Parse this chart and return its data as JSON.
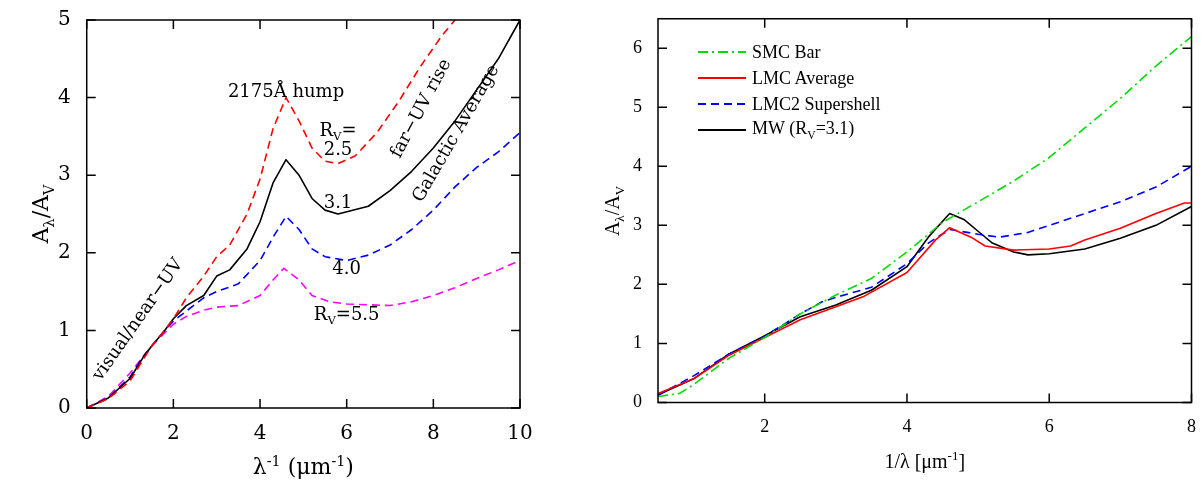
{
  "chart_data": [
    {
      "type": "line",
      "xlabel": "λ$^{-1}$   (μm$^{-1}$)",
      "ylabel": "A$_{λ}$/A$_{V}$",
      "xlim": [
        0,
        10
      ],
      "ylim": [
        0,
        5
      ],
      "xticks": [
        0,
        2,
        4,
        6,
        8,
        10
      ],
      "yticks": [
        0,
        1,
        2,
        3,
        4,
        5
      ],
      "series": [
        {
          "color": "#ff0000",
          "line_style": "dashed",
          "x": [
            0,
            0.5,
            1,
            1.3,
            1.5,
            1.8,
            2,
            2.3,
            2.7,
            3,
            3.3,
            3.7,
            4,
            4.3,
            4.6,
            4.9,
            5.2,
            5.5,
            5.8,
            6.2,
            6.7,
            7.2,
            7.7,
            8.2,
            8.5
          ],
          "values": [
            0,
            0.12,
            0.35,
            0.62,
            0.8,
            1.0,
            1.15,
            1.42,
            1.7,
            1.95,
            2.1,
            2.5,
            2.95,
            3.6,
            4.0,
            3.7,
            3.35,
            3.18,
            3.15,
            3.25,
            3.55,
            3.95,
            4.4,
            4.8,
            5.0
          ]
        },
        {
          "color": "#000000",
          "line_style": "solid",
          "x": [
            0,
            0.5,
            1,
            1.3,
            1.5,
            1.8,
            2,
            2.3,
            2.7,
            3,
            3.3,
            3.7,
            4,
            4.3,
            4.6,
            4.9,
            5.2,
            5.5,
            5.8,
            6.5,
            7,
            7.5,
            8,
            8.5,
            9,
            9.5,
            10
          ],
          "values": [
            0,
            0.13,
            0.38,
            0.65,
            0.8,
            1.0,
            1.15,
            1.32,
            1.45,
            1.7,
            1.78,
            2.05,
            2.4,
            2.9,
            3.2,
            3.0,
            2.7,
            2.55,
            2.5,
            2.6,
            2.8,
            3.05,
            3.35,
            3.7,
            4.1,
            4.5,
            5.0
          ]
        },
        {
          "color": "#0000ff",
          "line_style": "dashed",
          "x": [
            0,
            0.5,
            1,
            1.3,
            1.5,
            1.8,
            2,
            2.3,
            2.7,
            3,
            3.5,
            4,
            4.3,
            4.6,
            4.9,
            5.2,
            5.5,
            6,
            6.5,
            7,
            7.5,
            8,
            8.5,
            9,
            9.5,
            10
          ],
          "values": [
            0,
            0.13,
            0.4,
            0.66,
            0.8,
            1.0,
            1.12,
            1.25,
            1.42,
            1.5,
            1.6,
            1.9,
            2.2,
            2.47,
            2.3,
            2.05,
            1.95,
            1.9,
            1.97,
            2.1,
            2.3,
            2.55,
            2.85,
            3.1,
            3.3,
            3.55
          ]
        },
        {
          "color": "#ff00ff",
          "line_style": "dashed",
          "x": [
            0,
            0.5,
            1,
            1.5,
            2,
            2.3,
            2.7,
            3,
            3.5,
            4,
            4.3,
            4.55,
            4.9,
            5.2,
            5.6,
            6,
            7,
            7.5,
            8,
            8.5,
            9,
            9.5,
            10
          ],
          "values": [
            0,
            0.15,
            0.45,
            0.8,
            1.08,
            1.18,
            1.26,
            1.3,
            1.32,
            1.45,
            1.65,
            1.8,
            1.65,
            1.45,
            1.37,
            1.34,
            1.32,
            1.37,
            1.45,
            1.55,
            1.67,
            1.78,
            1.9
          ]
        }
      ],
      "annotations": [
        "2175Å hump",
        "R$_{V}$=",
        "2.5",
        "far−UV rise",
        "Galactic Average",
        "3.1",
        "4.0",
        "R$_{V}$=5.5",
        "visual/near−UV"
      ]
    },
    {
      "type": "line",
      "xlabel": "1/λ [μm$^{-1}$]",
      "ylabel": "A$_{λ}$/A$_{V}$",
      "xlim": [
        0.5,
        8
      ],
      "ylim": [
        0,
        6.5
      ],
      "xticks": [
        2,
        4,
        6,
        8
      ],
      "yticks": [
        0,
        1,
        2,
        3,
        4,
        5,
        6
      ],
      "legend": "top left",
      "series": [
        {
          "name": "SMC Bar",
          "color": "#00dd00",
          "line_style": "dashdot",
          "x": [
            0.5,
            0.8,
            1,
            1.5,
            2,
            2.5,
            3,
            3.5,
            4,
            4.5,
            5,
            5.5,
            6,
            6.5,
            7,
            7.5,
            8
          ],
          "values": [
            0.1,
            0.15,
            0.3,
            0.75,
            1.1,
            1.5,
            1.82,
            2.1,
            2.55,
            3.05,
            3.4,
            3.75,
            4.15,
            4.65,
            5.15,
            5.7,
            6.2
          ]
        },
        {
          "name": "LMC Average",
          "color": "#ff0000",
          "line_style": "solid",
          "x": [
            0.5,
            1,
            1.5,
            2,
            2.5,
            3,
            3.4,
            4,
            4.4,
            4.6,
            4.9,
            5.1,
            5.5,
            6,
            6.3,
            6.5,
            7,
            7.5,
            7.9,
            8
          ],
          "values": [
            0.15,
            0.4,
            0.8,
            1.1,
            1.4,
            1.62,
            1.8,
            2.2,
            2.75,
            2.96,
            2.8,
            2.65,
            2.58,
            2.6,
            2.65,
            2.75,
            2.95,
            3.2,
            3.38,
            3.38
          ]
        },
        {
          "name": "LMC2 Supershell",
          "color": "#0000ff",
          "line_style": "dashed",
          "x": [
            0.5,
            1,
            1.5,
            2,
            2.5,
            2.8,
            3,
            3.5,
            4,
            4.3,
            4.6,
            5,
            5.3,
            5.7,
            6,
            6.5,
            7,
            7.5,
            8
          ],
          "values": [
            0.12,
            0.45,
            0.82,
            1.12,
            1.5,
            1.7,
            1.78,
            1.95,
            2.35,
            2.7,
            2.93,
            2.85,
            2.8,
            2.88,
            3.0,
            3.2,
            3.4,
            3.65,
            4.0
          ]
        },
        {
          "name": "MW (R$_{V}$=3.1)",
          "color": "#000000",
          "line_style": "solid",
          "x": [
            0.5,
            1,
            1.5,
            2,
            2.5,
            3,
            3.5,
            4,
            4.3,
            4.6,
            4.8,
            5,
            5.2,
            5.5,
            5.7,
            6,
            6.5,
            7,
            7.5,
            8
          ],
          "values": [
            0.13,
            0.4,
            0.82,
            1.13,
            1.45,
            1.65,
            1.9,
            2.3,
            2.8,
            3.2,
            3.1,
            2.9,
            2.7,
            2.55,
            2.5,
            2.52,
            2.6,
            2.78,
            3.0,
            3.32
          ]
        }
      ]
    }
  ]
}
